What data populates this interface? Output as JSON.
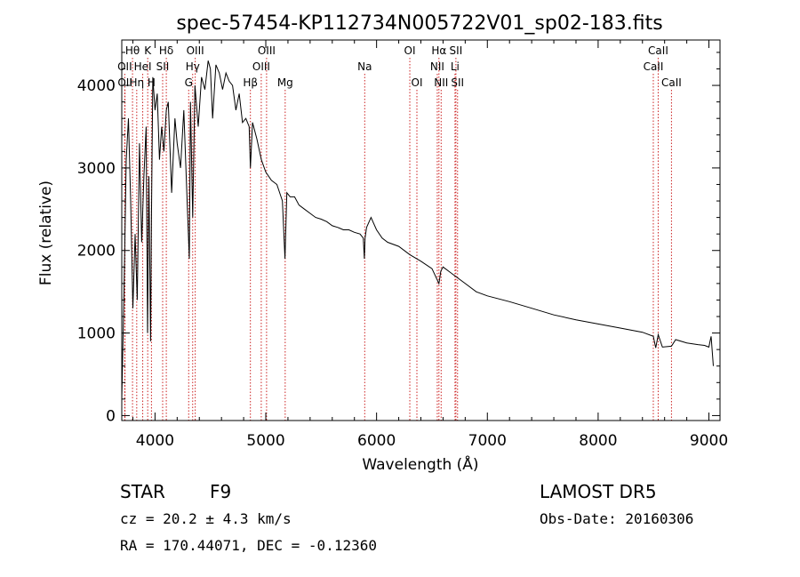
{
  "chart_data": {
    "type": "line",
    "title": "spec-57454-KP112734N005722V01_sp02-183.fits",
    "xlabel": "Wavelength (Å)",
    "ylabel": "Flux (relative)",
    "xlim": [
      3700,
      9100
    ],
    "ylim": [
      -60,
      4550
    ],
    "xticks": [
      4000,
      5000,
      6000,
      7000,
      8000,
      9000
    ],
    "yticks": [
      0,
      1000,
      2000,
      3000,
      4000
    ],
    "grid": false,
    "line_color": "#000000",
    "marker_color": "#cc2222",
    "series": [
      {
        "x": [
          3700,
          3720,
          3740,
          3760,
          3780,
          3800,
          3820,
          3840,
          3860,
          3880,
          3900,
          3920,
          3933,
          3945,
          3960,
          3968,
          3980,
          4000,
          4020,
          4040,
          4060,
          4080,
          4102,
          4120,
          4150,
          4180,
          4200,
          4230,
          4260,
          4290,
          4310,
          4320,
          4340,
          4360,
          4390,
          4420,
          4450,
          4480,
          4500,
          4520,
          4550,
          4580,
          4610,
          4640,
          4670,
          4700,
          4730,
          4760,
          4790,
          4820,
          4850,
          4861,
          4880,
          4920,
          4960,
          5000,
          5050,
          5100,
          5150,
          5173,
          5190,
          5220,
          5260,
          5300,
          5350,
          5400,
          5450,
          5500,
          5550,
          5600,
          5650,
          5700,
          5750,
          5800,
          5850,
          5880,
          5890,
          5896,
          5910,
          5950,
          6000,
          6050,
          6100,
          6200,
          6300,
          6400,
          6500,
          6563,
          6580,
          6600,
          6700,
          6800,
          6900,
          7000,
          7200,
          7400,
          7600,
          7800,
          8000,
          8200,
          8400,
          8498,
          8520,
          8542,
          8580,
          8662,
          8700,
          8800,
          8900,
          8960,
          9000,
          9010,
          9020,
          9040
        ],
        "y": [
          200,
          1500,
          3100,
          3600,
          2600,
          1300,
          2200,
          1400,
          3300,
          2100,
          2900,
          3500,
          1000,
          2900,
          900,
          2400,
          4100,
          3700,
          3900,
          3100,
          3500,
          3200,
          3700,
          3800,
          2700,
          3600,
          3300,
          3000,
          3700,
          2600,
          1900,
          3800,
          2400,
          4000,
          3500,
          4100,
          3950,
          4300,
          4200,
          3600,
          4250,
          4150,
          3950,
          4150,
          4050,
          4000,
          3700,
          3900,
          3550,
          3600,
          3500,
          3000,
          3550,
          3350,
          3100,
          2950,
          2850,
          2800,
          2600,
          1900,
          2700,
          2650,
          2650,
          2550,
          2500,
          2450,
          2400,
          2380,
          2350,
          2300,
          2280,
          2250,
          2250,
          2220,
          2200,
          2150,
          1900,
          2150,
          2280,
          2400,
          2250,
          2150,
          2100,
          2050,
          1950,
          1870,
          1780,
          1600,
          1750,
          1800,
          1700,
          1600,
          1500,
          1450,
          1380,
          1300,
          1220,
          1160,
          1110,
          1060,
          1010,
          960,
          820,
          980,
          830,
          840,
          920,
          880,
          860,
          850,
          830,
          900,
          960,
          600
        ]
      }
    ],
    "lines": [
      {
        "label": "Hθ",
        "x": 3797,
        "row": 0
      },
      {
        "label": "K",
        "x": 3934,
        "row": 0
      },
      {
        "label": "Hδ",
        "x": 4102,
        "row": 0
      },
      {
        "label": "OIII",
        "x": 4363,
        "row": 0
      },
      {
        "label": "OIII",
        "x": 5007,
        "row": 0
      },
      {
        "label": "OI",
        "x": 6300,
        "row": 0
      },
      {
        "label": "Hα",
        "x": 6563,
        "row": 0
      },
      {
        "label": "SII",
        "x": 6716,
        "row": 0
      },
      {
        "label": "CaII",
        "x": 8542,
        "row": 0
      },
      {
        "label": "OII",
        "x": 3727,
        "row": 1
      },
      {
        "label": "HeI",
        "x": 3889,
        "row": 1
      },
      {
        "label": "SII",
        "x": 4069,
        "row": 1
      },
      {
        "label": "Hγ",
        "x": 4340,
        "row": 1
      },
      {
        "label": "OIII",
        "x": 4959,
        "row": 1
      },
      {
        "label": "Na",
        "x": 5893,
        "row": 1
      },
      {
        "label": "NII",
        "x": 6548,
        "row": 1
      },
      {
        "label": "Li",
        "x": 6708,
        "row": 1
      },
      {
        "label": "CaII",
        "x": 8498,
        "row": 1
      },
      {
        "label": "OII",
        "x": 3729,
        "row": 2
      },
      {
        "label": "Hη",
        "x": 3835,
        "row": 2
      },
      {
        "label": "H",
        "x": 3968,
        "row": 2
      },
      {
        "label": "G",
        "x": 4304,
        "row": 2
      },
      {
        "label": "Hβ",
        "x": 4861,
        "row": 2
      },
      {
        "label": "Mg",
        "x": 5175,
        "row": 2
      },
      {
        "label": "OI",
        "x": 6364,
        "row": 2
      },
      {
        "label": "NII",
        "x": 6583,
        "row": 2
      },
      {
        "label": "SII",
        "x": 6731,
        "row": 2
      },
      {
        "label": "CaII",
        "x": 8662,
        "row": 2
      }
    ]
  },
  "info": {
    "class": "STAR",
    "subclass": "F9",
    "survey": "LAMOST DR5",
    "cz": "cz = 20.2 ± 4.3 km/s",
    "obs_date": "Obs-Date: 20160306",
    "radec": "RA = 170.44071, DEC =  -0.12360"
  }
}
